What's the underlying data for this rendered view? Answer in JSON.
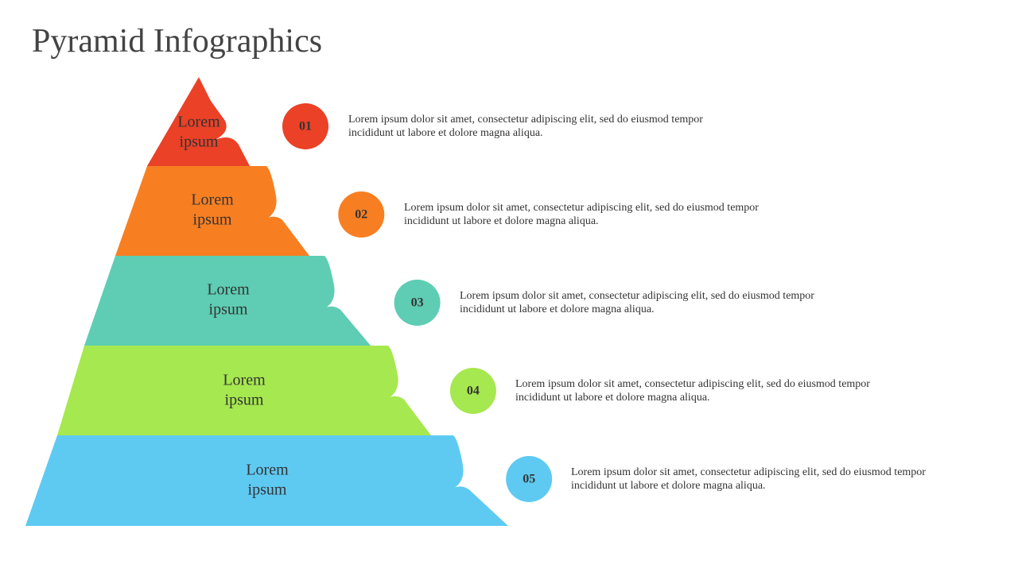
{
  "header": {
    "title": "Pyramid Infographics"
  },
  "levels": [
    {
      "label": [
        "Lorem",
        "ipsum"
      ],
      "number": "01",
      "description": "Lorem ipsum dolor sit amet, consectetur adipiscing elit, sed do eiusmod tempor incididunt ut labore et dolore magna aliqua.",
      "color": "#ea4127"
    },
    {
      "label": [
        "Lorem",
        "ipsum"
      ],
      "number": "02",
      "description": "Lorem ipsum dolor sit amet, consectetur adipiscing elit, sed do eiusmod tempor incididunt ut labore et dolore magna aliqua.",
      "color": "#f77f22"
    },
    {
      "label": [
        "Lorem",
        "ipsum"
      ],
      "number": "03",
      "description": "Lorem ipsum dolor sit amet, consectetur adipiscing elit, sed do eiusmod tempor incididunt ut labore et dolore magna aliqua.",
      "color": "#5ecdb3"
    },
    {
      "label": [
        "Lorem",
        "ipsum"
      ],
      "number": "04",
      "description": "Lorem ipsum dolor sit amet, consectetur adipiscing elit, sed do eiusmod tempor incididunt ut labore et dolore magna aliqua.",
      "color": "#a6e84f"
    },
    {
      "label": [
        "Lorem",
        "ipsum"
      ],
      "number": "05",
      "description": "Lorem ipsum dolor sit amet, consectetur adipiscing elit, sed do eiusmod tempor incididunt ut labore et dolore magna aliqua.",
      "color": "#5ecaf2"
    }
  ]
}
